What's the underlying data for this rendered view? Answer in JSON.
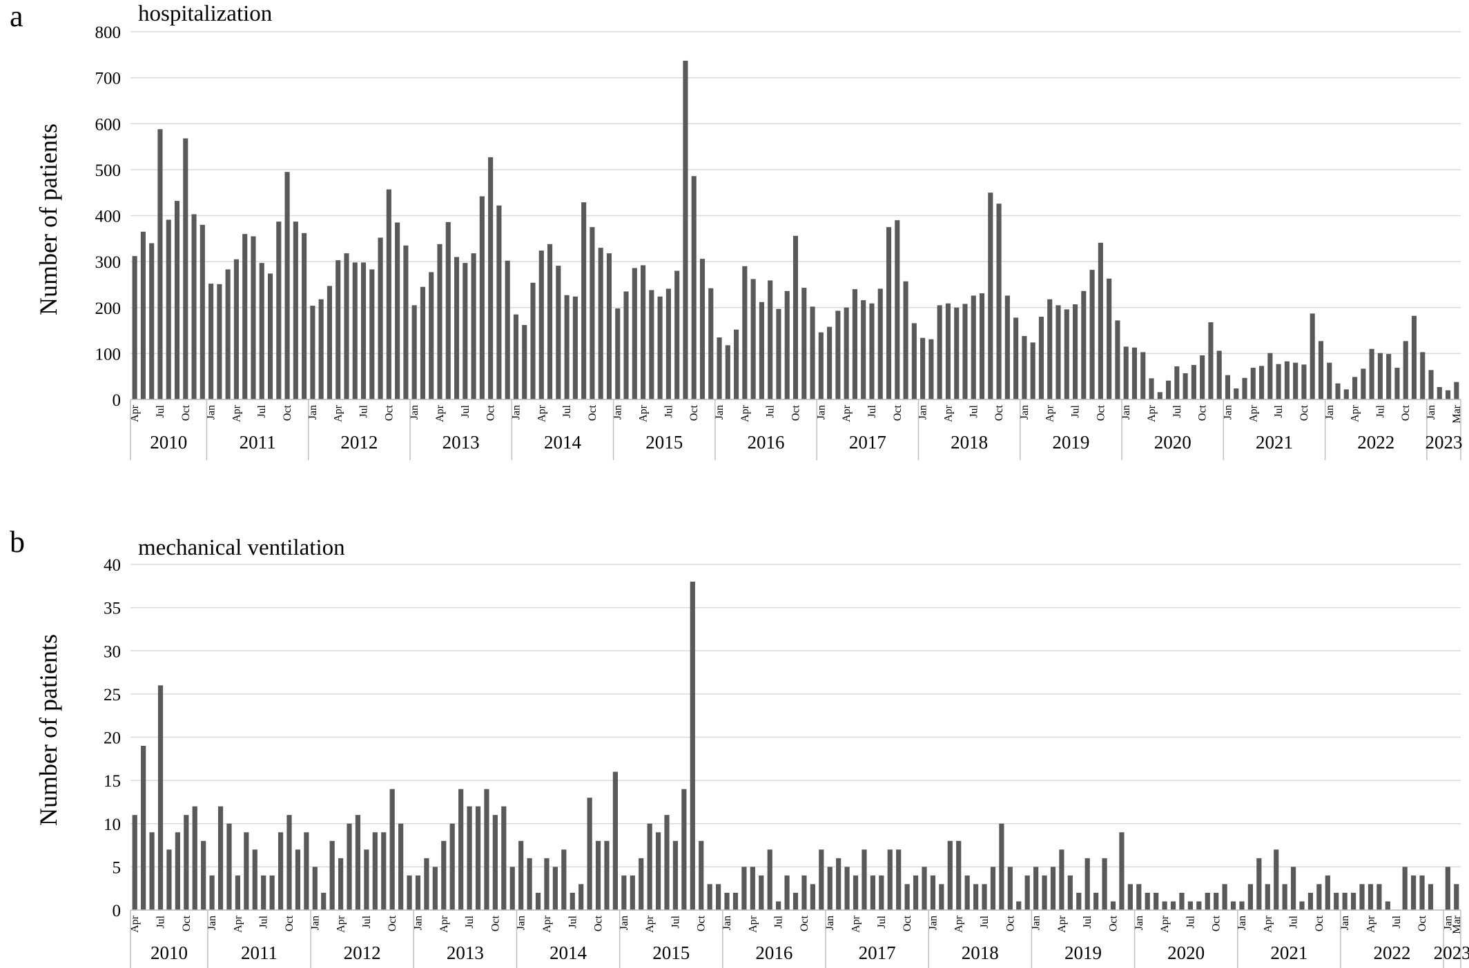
{
  "panels": [
    {
      "letter": "a",
      "title": "hospitalization",
      "ylabel": "Number of patients"
    },
    {
      "letter": "b",
      "title": "mechanical ventilation",
      "ylabel": "Number of patients"
    }
  ],
  "colors": {
    "bar": "#595959",
    "grid": "#d9d9d9",
    "axis": "#bfbfbf"
  },
  "month_tick_labels": [
    "Jan",
    "Apr",
    "Jul",
    "Oct",
    "Mar"
  ],
  "chart_data": [
    {
      "type": "bar",
      "title": "hospitalization",
      "ylabel": "Number of patients",
      "xlabel": "",
      "ylim": [
        0,
        800
      ],
      "yticks": [
        0,
        100,
        200,
        300,
        400,
        500,
        600,
        700,
        800
      ],
      "grid": true,
      "x_start": "2010-04",
      "x_end": "2023-03",
      "years": [
        "2010",
        "2011",
        "2012",
        "2013",
        "2014",
        "2015",
        "2016",
        "2017",
        "2018",
        "2019",
        "2020",
        "2021",
        "2022",
        "2023"
      ],
      "values": [
        312,
        365,
        340,
        588,
        391,
        432,
        568,
        403,
        380,
        252,
        251,
        283,
        305,
        360,
        355,
        297,
        274,
        387,
        495,
        387,
        362,
        204,
        218,
        247,
        303,
        318,
        298,
        298,
        283,
        352,
        457,
        385,
        335,
        205,
        245,
        277,
        338,
        386,
        310,
        297,
        318,
        442,
        527,
        422,
        302,
        185,
        162,
        254,
        324,
        338,
        291,
        227,
        224,
        429,
        375,
        330,
        318,
        198,
        235,
        286,
        292,
        238,
        224,
        241,
        280,
        737,
        486,
        306,
        242,
        135,
        118,
        152,
        290,
        262,
        212,
        259,
        197,
        236,
        356,
        243,
        202,
        146,
        158,
        193,
        200,
        240,
        216,
        209,
        241,
        375,
        390,
        257,
        166,
        134,
        131,
        205,
        209,
        200,
        208,
        226,
        231,
        450,
        426,
        226,
        178,
        138,
        124,
        180,
        218,
        205,
        196,
        207,
        236,
        282,
        341,
        263,
        172,
        115,
        113,
        103,
        46,
        16,
        41,
        72,
        57,
        75,
        96,
        168,
        106,
        53,
        24,
        47,
        69,
        73,
        101,
        77,
        83,
        80,
        76,
        187,
        127,
        80,
        35,
        22,
        49,
        67,
        110,
        101,
        99,
        69,
        127,
        182,
        103,
        64,
        27,
        20,
        38
      ]
    },
    {
      "type": "bar",
      "title": "mechanical ventilation",
      "ylabel": "Number of patients",
      "xlabel": "",
      "ylim": [
        0,
        40
      ],
      "yticks": [
        0,
        5,
        10,
        15,
        20,
        25,
        30,
        35,
        40
      ],
      "grid": true,
      "x_start": "2010-04",
      "x_end": "2023-03",
      "years": [
        "2010",
        "2011",
        "2012",
        "2013",
        "2014",
        "2015",
        "2016",
        "2017",
        "2018",
        "2019",
        "2020",
        "2021",
        "2022",
        "2023"
      ],
      "values": [
        11,
        19,
        9,
        26,
        7,
        9,
        11,
        12,
        8,
        4,
        12,
        10,
        4,
        9,
        7,
        4,
        4,
        9,
        11,
        7,
        9,
        5,
        2,
        8,
        6,
        10,
        11,
        7,
        9,
        9,
        14,
        10,
        4,
        4,
        6,
        5,
        8,
        10,
        14,
        12,
        12,
        14,
        11,
        12,
        5,
        8,
        6,
        2,
        6,
        5,
        7,
        2,
        3,
        13,
        8,
        8,
        16,
        4,
        4,
        6,
        10,
        9,
        11,
        8,
        14,
        38,
        8,
        3,
        3,
        2,
        2,
        5,
        5,
        4,
        7,
        1,
        4,
        2,
        4,
        3,
        7,
        5,
        6,
        5,
        4,
        7,
        4,
        4,
        7,
        7,
        3,
        4,
        5,
        4,
        3,
        8,
        8,
        4,
        3,
        3,
        5,
        10,
        5,
        1,
        4,
        5,
        4,
        5,
        7,
        4,
        2,
        6,
        2,
        6,
        1,
        9,
        3,
        3,
        2,
        2,
        1,
        1,
        2,
        1,
        1,
        2,
        2,
        3,
        1,
        1,
        3,
        6,
        3,
        7,
        3,
        5,
        1,
        2,
        3,
        4,
        2,
        2,
        2,
        3,
        3,
        3,
        1,
        0,
        5,
        4,
        4,
        3,
        0,
        5,
        3
      ]
    }
  ]
}
